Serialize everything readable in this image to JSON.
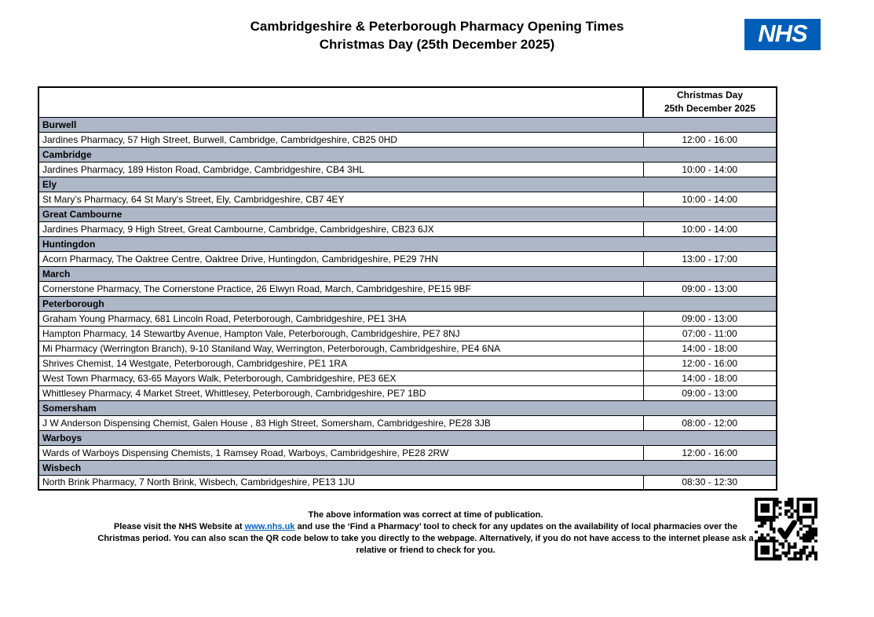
{
  "header": {
    "title_line1": "Cambridgeshire & Peterborough Pharmacy Opening Times",
    "title_line2": "Christmas Day (25th December 2025)",
    "logo_text": "NHS"
  },
  "table": {
    "header_col2_line1": "Christmas Day",
    "header_col2_line2": "25th December 2025",
    "sections": [
      {
        "name": "Burwell",
        "rows": [
          {
            "pharmacy": "Jardines Pharmacy, 57 High Street, Burwell, Cambridge, Cambridgeshire, CB25 0HD",
            "time": "12:00 - 16:00"
          }
        ]
      },
      {
        "name": "Cambridge",
        "rows": [
          {
            "pharmacy": "Jardines Pharmacy, 189 Histon Road, Cambridge, Cambridgeshire, CB4 3HL",
            "time": "10:00 - 14:00"
          }
        ]
      },
      {
        "name": "Ely",
        "rows": [
          {
            "pharmacy": "St Mary’s Pharmacy, 64 St Mary's Street, Ely, Cambridgeshire, CB7 4EY",
            "time": "10:00 - 14:00"
          }
        ]
      },
      {
        "name": "Great Cambourne",
        "rows": [
          {
            "pharmacy": "Jardines Pharmacy, 9 High Street, Great Cambourne, Cambridge, Cambridgeshire, CB23 6JX",
            "time": "10:00 - 14:00"
          }
        ]
      },
      {
        "name": "Huntingdon",
        "rows": [
          {
            "pharmacy": "Acorn Pharmacy, The Oaktree Centre, Oaktree Drive, Huntingdon, Cambridgeshire, PE29 7HN",
            "time": "13:00 - 17:00"
          }
        ]
      },
      {
        "name": "March",
        "rows": [
          {
            "pharmacy": "Cornerstone Pharmacy, The Cornerstone Practice, 26 Elwyn Road, March, Cambridgeshire, PE15 9BF",
            "time": "09:00 - 13:00"
          }
        ]
      },
      {
        "name": "Peterborough",
        "rows": [
          {
            "pharmacy": "Graham Young Pharmacy, 681 Lincoln Road, Peterborough, Cambridgeshire, PE1 3HA",
            "time": "09:00 - 13:00"
          },
          {
            "pharmacy": "Hampton Pharmacy, 14 Stewartby Avenue, Hampton Vale, Peterborough, Cambridgeshire, PE7 8NJ",
            "time": "07:00 - 11:00"
          },
          {
            "pharmacy": "Mi Pharmacy (Werrington Branch), 9-10 Staniland Way, Werrington, Peterborough, Cambridgeshire, PE4 6NA",
            "time": "14:00 - 18:00"
          },
          {
            "pharmacy": "Shrives Chemist, 14 Westgate, Peterborough, Cambridgeshire, PE1 1RA",
            "time": "12:00 - 16:00"
          },
          {
            "pharmacy": "West Town Pharmacy, 63-65 Mayors Walk, Peterborough, Cambridgeshire, PE3 6EX",
            "time": "14:00 - 18:00"
          },
          {
            "pharmacy": "Whittlesey Pharmacy, 4 Market Street, Whittlesey, Peterborough, Cambridgeshire, PE7 1BD",
            "time": "09:00 - 13:00"
          }
        ]
      },
      {
        "name": "Somersham",
        "rows": [
          {
            "pharmacy": "J W Anderson Dispensing Chemist, Galen House , 83 High Street, Somersham, Cambridgeshire, PE28 3JB",
            "time": "08:00 - 12:00"
          }
        ]
      },
      {
        "name": "Warboys",
        "rows": [
          {
            "pharmacy": "Wards of Warboys Dispensing Chemists, 1 Ramsey Road, Warboys, Cambridgeshire, PE28 2RW",
            "time": "12:00 - 16:00"
          }
        ]
      },
      {
        "name": "Wisbech",
        "rows": [
          {
            "pharmacy": "North Brink Pharmacy, 7 North Brink, Wisbech, Cambridgeshire, PE13 1JU",
            "time": "08:30 - 12:30"
          }
        ]
      }
    ]
  },
  "footer": {
    "line1": "The above information was correct at time of publication.",
    "before_link": "Please visit the NHS Website at ",
    "link_text": "www.nhs.uk",
    "after_link": " and use the ‘Find a Pharmacy’ tool to check for any updates on the availability of local pharmacies over the Christmas period. You can also scan the QR code below to take you directly to the webpage. Alternatively, if you do not have access to the internet please ask a relative or friend to check for you."
  },
  "qr": {
    "icon": "check-mark-icon"
  },
  "colors": {
    "section_bg": "#adb7c7",
    "nhs_blue": "#005EB8",
    "link_blue": "#0563C1",
    "border": "#000000"
  }
}
